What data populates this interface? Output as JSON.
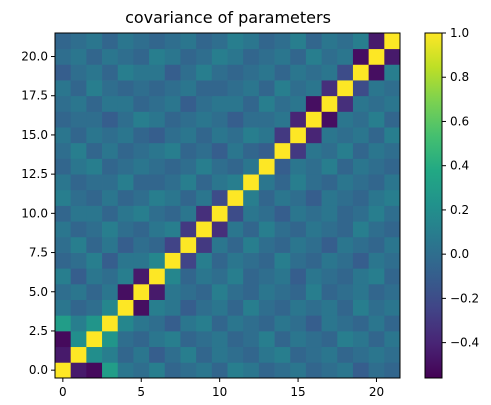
{
  "chart_data": {
    "type": "heatmap",
    "title": "covariance of parameters",
    "xlabel": "",
    "ylabel": "",
    "size": 22,
    "xlim": [
      -0.5,
      21.5
    ],
    "ylim": [
      -0.5,
      21.5
    ],
    "origin": "lower",
    "colormap": "viridis",
    "clim": [
      -0.56,
      1.0
    ],
    "x_ticks": [
      0,
      5,
      10,
      15,
      20
    ],
    "x_tick_labels": [
      "0",
      "5",
      "10",
      "15",
      "20"
    ],
    "y_ticks": [
      0.0,
      2.5,
      5.0,
      7.5,
      10.0,
      12.5,
      15.0,
      17.5,
      20.0
    ],
    "y_tick_labels": [
      "0.0",
      "2.5",
      "5.0",
      "7.5",
      "10.0",
      "12.5",
      "15.0",
      "17.5",
      "20.0"
    ],
    "colorbar_ticks": [
      1.0,
      0.8,
      0.6,
      0.4,
      0.2,
      0.0,
      -0.2,
      -0.4
    ],
    "colorbar_tick_labels": [
      "1.0",
      "0.8",
      "0.6",
      "0.4",
      "0.2",
      "0.0",
      "−0.2",
      "−0.4"
    ],
    "matrix": [
      [
        1.0,
        -0.45,
        -0.52,
        0.3,
        0.05,
        0.0,
        0.1,
        -0.05,
        0.0,
        0.05,
        -0.05,
        0.1,
        0.05,
        -0.05,
        0.0,
        0.05,
        -0.05,
        0.0,
        0.05,
        -0.1,
        0.0,
        -0.05
      ],
      [
        -0.45,
        1.0,
        0.2,
        0.1,
        -0.05,
        0.05,
        -0.1,
        0.0,
        0.1,
        -0.05,
        0.05,
        0.0,
        -0.05,
        0.05,
        0.1,
        -0.05,
        0.0,
        0.05,
        -0.05,
        0.0,
        0.05,
        0.0
      ],
      [
        -0.52,
        0.2,
        1.0,
        0.25,
        0.0,
        -0.05,
        0.05,
        0.1,
        -0.05,
        0.0,
        0.05,
        -0.05,
        0.0,
        0.1,
        -0.05,
        0.05,
        0.0,
        -0.05,
        0.1,
        0.05,
        -0.05,
        0.05
      ],
      [
        0.3,
        0.1,
        0.25,
        1.0,
        0.15,
        0.05,
        0.0,
        -0.1,
        0.05,
        0.1,
        -0.05,
        0.05,
        0.0,
        -0.05,
        0.05,
        0.0,
        -0.1,
        0.05,
        0.0,
        -0.05,
        0.05,
        -0.05
      ],
      [
        0.05,
        -0.05,
        0.0,
        0.15,
        1.0,
        -0.5,
        0.1,
        0.05,
        -0.1,
        0.0,
        0.05,
        -0.05,
        0.1,
        0.0,
        -0.05,
        0.05,
        0.0,
        0.05,
        -0.05,
        0.1,
        0.0,
        0.05
      ],
      [
        0.0,
        0.05,
        -0.05,
        0.05,
        -0.5,
        1.0,
        -0.45,
        0.05,
        0.0,
        -0.05,
        0.1,
        0.0,
        -0.05,
        0.05,
        0.0,
        -0.05,
        0.1,
        -0.05,
        0.0,
        0.05,
        -0.05,
        0.0
      ],
      [
        0.1,
        -0.1,
        0.05,
        0.0,
        0.1,
        -0.45,
        1.0,
        0.15,
        -0.05,
        0.05,
        0.0,
        0.1,
        -0.05,
        0.0,
        0.05,
        -0.1,
        0.05,
        0.0,
        -0.05,
        0.05,
        0.1,
        -0.05
      ],
      [
        -0.05,
        0.0,
        0.1,
        -0.1,
        0.05,
        0.05,
        0.15,
        1.0,
        -0.25,
        0.1,
        -0.05,
        0.05,
        0.0,
        -0.05,
        0.1,
        0.0,
        -0.05,
        0.05,
        0.0,
        -0.1,
        0.05,
        0.0
      ],
      [
        0.0,
        0.1,
        -0.05,
        0.05,
        -0.1,
        0.0,
        -0.05,
        -0.25,
        1.0,
        -0.3,
        0.05,
        -0.05,
        0.1,
        0.0,
        -0.05,
        0.05,
        0.0,
        -0.1,
        0.05,
        0.0,
        -0.05,
        0.05
      ],
      [
        0.05,
        -0.05,
        0.0,
        0.1,
        0.0,
        -0.05,
        0.05,
        0.1,
        -0.3,
        1.0,
        -0.35,
        0.05,
        -0.05,
        0.1,
        0.0,
        -0.05,
        0.05,
        0.0,
        -0.05,
        0.1,
        0.0,
        -0.05
      ],
      [
        -0.05,
        0.05,
        0.05,
        -0.05,
        0.05,
        0.1,
        0.0,
        -0.05,
        0.05,
        -0.35,
        1.0,
        -0.2,
        0.05,
        0.0,
        -0.1,
        0.05,
        0.0,
        0.05,
        -0.05,
        0.0,
        0.1,
        0.0
      ],
      [
        0.1,
        0.0,
        -0.05,
        0.05,
        -0.05,
        0.0,
        0.1,
        0.05,
        -0.05,
        0.05,
        -0.2,
        1.0,
        0.1,
        -0.05,
        0.05,
        0.0,
        -0.1,
        0.05,
        0.0,
        -0.05,
        0.05,
        0.1
      ],
      [
        0.05,
        -0.05,
        0.0,
        0.0,
        0.1,
        -0.05,
        -0.05,
        0.0,
        0.1,
        -0.05,
        0.05,
        0.1,
        1.0,
        0.05,
        -0.05,
        0.1,
        0.0,
        -0.05,
        0.05,
        0.0,
        -0.05,
        0.05
      ],
      [
        -0.05,
        0.05,
        0.1,
        -0.05,
        0.0,
        0.05,
        0.0,
        -0.05,
        0.0,
        0.1,
        0.0,
        -0.05,
        0.05,
        1.0,
        -0.1,
        0.05,
        0.0,
        0.1,
        -0.05,
        0.05,
        0.0,
        -0.05
      ],
      [
        0.0,
        0.1,
        -0.05,
        0.05,
        -0.05,
        0.0,
        0.05,
        0.1,
        -0.05,
        0.0,
        -0.1,
        0.05,
        -0.05,
        -0.1,
        1.0,
        -0.3,
        0.05,
        0.0,
        0.1,
        -0.05,
        0.05,
        0.0
      ],
      [
        0.05,
        -0.05,
        0.05,
        0.0,
        0.05,
        -0.05,
        -0.1,
        0.0,
        0.05,
        -0.05,
        0.05,
        0.0,
        0.1,
        0.05,
        -0.3,
        1.0,
        -0.4,
        0.05,
        0.0,
        0.05,
        -0.05,
        0.1
      ],
      [
        -0.05,
        0.0,
        0.0,
        -0.1,
        0.0,
        0.1,
        0.05,
        -0.05,
        0.0,
        0.05,
        0.0,
        -0.1,
        0.0,
        0.0,
        0.05,
        -0.4,
        1.0,
        -0.5,
        0.05,
        0.0,
        0.1,
        -0.05
      ],
      [
        0.0,
        0.05,
        -0.05,
        0.05,
        0.05,
        -0.05,
        0.0,
        0.05,
        -0.1,
        0.0,
        0.05,
        0.05,
        -0.05,
        0.1,
        0.0,
        0.05,
        -0.5,
        1.0,
        -0.35,
        0.05,
        0.0,
        0.05
      ],
      [
        0.05,
        -0.05,
        0.1,
        0.0,
        -0.05,
        0.0,
        -0.05,
        0.0,
        0.05,
        -0.05,
        -0.05,
        0.0,
        0.05,
        -0.05,
        0.1,
        0.0,
        0.05,
        -0.35,
        1.0,
        -0.2,
        0.05,
        0.0
      ],
      [
        -0.1,
        0.0,
        0.05,
        -0.05,
        0.1,
        0.05,
        0.05,
        -0.1,
        0.0,
        0.1,
        0.0,
        -0.05,
        0.0,
        0.05,
        -0.05,
        0.05,
        0.0,
        0.05,
        -0.2,
        1.0,
        -0.5,
        0.1
      ],
      [
        0.0,
        0.05,
        -0.05,
        0.05,
        0.0,
        -0.05,
        0.1,
        0.05,
        -0.05,
        0.0,
        0.1,
        0.05,
        -0.05,
        0.0,
        0.05,
        -0.05,
        0.1,
        0.0,
        0.05,
        -0.5,
        1.0,
        -0.45
      ],
      [
        -0.05,
        0.0,
        0.05,
        -0.05,
        0.05,
        0.0,
        -0.05,
        0.0,
        0.05,
        -0.05,
        0.0,
        0.1,
        0.05,
        -0.05,
        0.0,
        0.1,
        -0.05,
        0.05,
        0.0,
        0.1,
        -0.45,
        1.0
      ]
    ]
  }
}
